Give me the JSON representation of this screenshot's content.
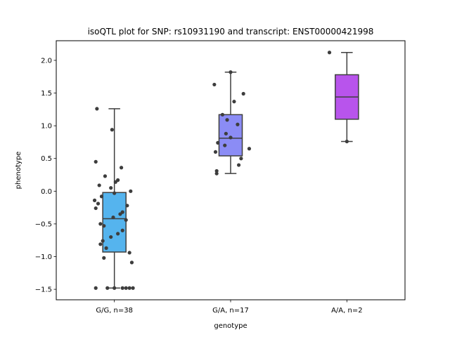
{
  "chart_data": {
    "type": "box",
    "title": "isoQTL plot for SNP: rs10931190 and transcript: ENST00000421998",
    "xlabel": "genotype",
    "ylabel": "phenotype",
    "ylim": [
      -1.66,
      2.3
    ],
    "yticks": [
      -1.5,
      -1.0,
      -0.5,
      0.0,
      0.5,
      1.0,
      1.5,
      2.0
    ],
    "ytick_labels": [
      "−1.5",
      "−1.0",
      "−0.5",
      "0.0",
      "0.5",
      "1.0",
      "1.5",
      "2.0"
    ],
    "grid": false,
    "legend": "none",
    "categories": [
      "G/G, n=38",
      "G/A, n=17",
      "A/A, n=2"
    ],
    "boxes": [
      {
        "category": "G/G, n=38",
        "color": "#55b4ee",
        "whisker_low": -1.48,
        "q1": -0.93,
        "median": -0.42,
        "q3": -0.02,
        "whisker_high": 1.26,
        "points": [
          {
            "x": -0.15,
            "y": 1.26
          },
          {
            "x": -0.02,
            "y": 0.94
          },
          {
            "x": -0.16,
            "y": 0.45
          },
          {
            "x": 0.06,
            "y": 0.36
          },
          {
            "x": -0.08,
            "y": 0.23
          },
          {
            "x": 0.03,
            "y": 0.17
          },
          {
            "x": 0.01,
            "y": 0.14
          },
          {
            "x": -0.13,
            "y": 0.09
          },
          {
            "x": -0.03,
            "y": 0.05
          },
          {
            "x": 0.14,
            "y": 0.0
          },
          {
            "x": 0.0,
            "y": -0.03
          },
          {
            "x": -0.11,
            "y": -0.08
          },
          {
            "x": -0.17,
            "y": -0.14
          },
          {
            "x": -0.14,
            "y": -0.19
          },
          {
            "x": 0.11,
            "y": -0.22
          },
          {
            "x": -0.16,
            "y": -0.26
          },
          {
            "x": 0.07,
            "y": -0.32
          },
          {
            "x": 0.05,
            "y": -0.35
          },
          {
            "x": -0.01,
            "y": -0.4
          },
          {
            "x": 0.1,
            "y": -0.44
          },
          {
            "x": -0.12,
            "y": -0.5
          },
          {
            "x": -0.09,
            "y": -0.53
          },
          {
            "x": 0.07,
            "y": -0.6
          },
          {
            "x": 0.03,
            "y": -0.65
          },
          {
            "x": -0.03,
            "y": -0.7
          },
          {
            "x": -0.1,
            "y": -0.76
          },
          {
            "x": -0.12,
            "y": -0.81
          },
          {
            "x": -0.07,
            "y": -0.87
          },
          {
            "x": 0.13,
            "y": -0.94
          },
          {
            "x": -0.09,
            "y": -1.02
          },
          {
            "x": 0.15,
            "y": -1.09
          },
          {
            "x": -0.16,
            "y": -1.48
          },
          {
            "x": -0.06,
            "y": -1.48
          },
          {
            "x": 0.0,
            "y": -1.48
          },
          {
            "x": 0.07,
            "y": -1.48
          },
          {
            "x": 0.1,
            "y": -1.48
          },
          {
            "x": 0.13,
            "y": -1.48
          },
          {
            "x": 0.16,
            "y": -1.48
          }
        ]
      },
      {
        "category": "G/A, n=17",
        "color": "#8b8cf5",
        "whisker_low": 0.27,
        "q1": 0.54,
        "median": 0.81,
        "q3": 1.17,
        "whisker_high": 1.82,
        "points": [
          {
            "x": 0.0,
            "y": 1.82
          },
          {
            "x": -0.14,
            "y": 1.63
          },
          {
            "x": 0.11,
            "y": 1.49
          },
          {
            "x": 0.03,
            "y": 1.37
          },
          {
            "x": -0.07,
            "y": 1.17
          },
          {
            "x": -0.03,
            "y": 1.09
          },
          {
            "x": 0.06,
            "y": 1.02
          },
          {
            "x": -0.04,
            "y": 0.88
          },
          {
            "x": 0.0,
            "y": 0.82
          },
          {
            "x": -0.11,
            "y": 0.74
          },
          {
            "x": -0.05,
            "y": 0.7
          },
          {
            "x": 0.16,
            "y": 0.65
          },
          {
            "x": -0.13,
            "y": 0.6
          },
          {
            "x": 0.09,
            "y": 0.5
          },
          {
            "x": 0.07,
            "y": 0.4
          },
          {
            "x": -0.12,
            "y": 0.31
          },
          {
            "x": -0.12,
            "y": 0.27
          }
        ]
      },
      {
        "category": "A/A, n=2",
        "color": "#b854ec",
        "whisker_low": 0.76,
        "q1": 1.1,
        "median": 1.44,
        "q3": 1.78,
        "whisker_high": 2.12,
        "points": [
          {
            "x": -0.15,
            "y": 2.12
          },
          {
            "x": 0.0,
            "y": 0.76
          }
        ]
      }
    ]
  }
}
